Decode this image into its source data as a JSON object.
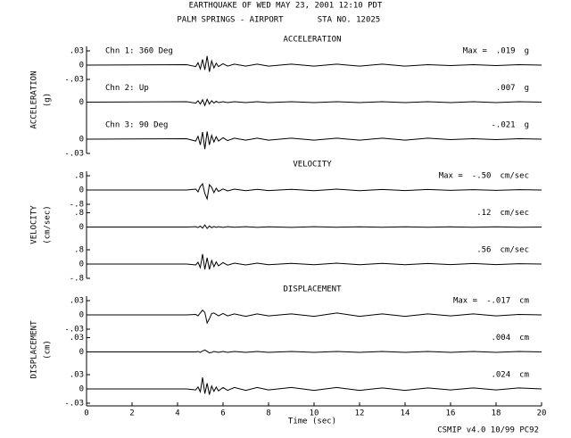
{
  "header": {
    "line1": "EARTHQUAKE OF WED MAY 23, 2001  12:10 PDT",
    "station_name": "PALM SPRINGS - AIRPORT",
    "station_no": "STA NO. 12025"
  },
  "footer": "CSMIP v4.0 10/99  PC92",
  "chart_data": [
    {
      "type": "line",
      "title": "ACCELERATION",
      "ylabel": "ACCELERATION",
      "yunit": "(g)",
      "max_prefix": "Max =",
      "unit": "g",
      "xlim": [
        0,
        20
      ],
      "ylim": [
        -0.03,
        0.03
      ],
      "x": [
        0,
        4.4,
        4.8,
        4.9,
        5.0,
        5.1,
        5.2,
        5.3,
        5.4,
        5.5,
        5.6,
        5.7,
        5.8,
        6.0,
        6.2,
        6.5,
        7,
        7.5,
        8,
        9,
        10,
        11,
        12,
        13,
        14,
        15,
        16,
        17,
        18,
        19,
        20
      ],
      "series": [
        {
          "name": "Chn 1: 360 Deg",
          "color": "#000000",
          "max": {
            "value": 0.019,
            "label": ".019"
          },
          "yticks": [
            {
              "value": 0.03,
              "label": ".03"
            },
            0,
            {
              "value": -0.03,
              "label": "-.03"
            }
          ],
          "values": [
            0,
            0.001,
            -0.003,
            0.005,
            -0.008,
            0.012,
            -0.01,
            0.019,
            -0.014,
            0.009,
            -0.006,
            0.004,
            -0.003,
            0.003,
            -0.002,
            0.002,
            -0.002,
            0.002,
            -0.002,
            0.002,
            -0.002,
            0.002,
            -0.002,
            0.002,
            -0.002,
            0.001,
            -0.001,
            0.001,
            -0.001,
            0.001,
            0
          ]
        },
        {
          "name": "Chn 2: Up",
          "color": "#000000",
          "max": {
            "value": 0.007,
            "label": ".007"
          },
          "yticks": [
            0
          ],
          "values": [
            0,
            0.001,
            -0.002,
            0.003,
            -0.004,
            0.005,
            -0.007,
            0.006,
            -0.004,
            0.003,
            -0.002,
            0.002,
            -0.001,
            0.001,
            -0.001,
            0.001,
            -0.001,
            0.001,
            -0.001,
            0.001,
            -0.001,
            0.001,
            -0.001,
            0.001,
            -0.001,
            0.001,
            -0.001,
            0.001,
            -0.001,
            0.001,
            0
          ]
        },
        {
          "name": "Chn 3: 90 Deg",
          "color": "#000000",
          "max": {
            "value": -0.021,
            "label": "-.021"
          },
          "yticks": [
            0,
            {
              "value": -0.03,
              "label": "-.03"
            }
          ],
          "values": [
            0,
            0.001,
            -0.004,
            0.006,
            -0.012,
            0.015,
            -0.021,
            0.016,
            -0.012,
            0.008,
            -0.006,
            0.005,
            -0.004,
            0.003,
            -0.003,
            0.002,
            -0.002,
            0.002,
            -0.002,
            0.002,
            -0.002,
            0.002,
            -0.002,
            0.002,
            -0.002,
            0.002,
            -0.001,
            0.001,
            -0.001,
            0.001,
            0
          ]
        }
      ]
    },
    {
      "type": "line",
      "title": "VELOCITY",
      "ylabel": "VELOCITY",
      "yunit": "(cm/sec)",
      "max_prefix": "Max =",
      "unit": "cm/sec",
      "xlim": [
        0,
        20
      ],
      "ylim": [
        -0.8,
        0.8
      ],
      "x": [
        0,
        4.4,
        4.8,
        4.9,
        5.0,
        5.1,
        5.2,
        5.3,
        5.4,
        5.5,
        5.6,
        5.7,
        5.8,
        6.0,
        6.2,
        6.5,
        7,
        7.5,
        8,
        9,
        10,
        11,
        12,
        13,
        14,
        15,
        16,
        17,
        18,
        19,
        20
      ],
      "series": [
        {
          "color": "#000000",
          "max": {
            "value": -0.5,
            "label": "-.50"
          },
          "yticks": [
            {
              "value": 0.8,
              "label": ".8"
            },
            0,
            {
              "value": -0.8,
              "label": "-.8"
            }
          ],
          "values": [
            0,
            0,
            0.05,
            -0.1,
            0.2,
            0.35,
            -0.2,
            -0.5,
            0.3,
            0.15,
            -0.15,
            0.1,
            -0.08,
            0.06,
            -0.05,
            0.05,
            -0.04,
            0.04,
            -0.03,
            0.04,
            -0.04,
            0.05,
            -0.04,
            0.03,
            -0.03,
            0.03,
            -0.02,
            0.02,
            -0.02,
            0.02,
            0
          ]
        },
        {
          "color": "#000000",
          "max": {
            "value": 0.12,
            "label": ".12"
          },
          "yticks": [
            {
              "value": 0.8,
              "label": ".8"
            },
            0
          ],
          "values": [
            0,
            0,
            0.02,
            -0.03,
            0.05,
            -0.06,
            0.12,
            -0.08,
            0.06,
            -0.04,
            0.03,
            -0.02,
            0.02,
            -0.02,
            0.02,
            -0.01,
            0.02,
            -0.02,
            0.01,
            -0.02,
            0.02,
            -0.01,
            0.01,
            -0.01,
            0.01,
            -0.01,
            0.01,
            -0.01,
            0.01,
            -0.01,
            0
          ]
        },
        {
          "color": "#000000",
          "max": {
            "value": 0.56,
            "label": ".56"
          },
          "yticks": [
            {
              "value": 0.8,
              "label": ".8"
            },
            0,
            {
              "value": -0.8,
              "label": "-.8"
            }
          ],
          "values": [
            0,
            0,
            -0.05,
            0.1,
            -0.2,
            0.56,
            -0.3,
            0.35,
            -0.3,
            0.2,
            -0.15,
            0.12,
            -0.1,
            0.08,
            -0.06,
            0.05,
            -0.05,
            0.05,
            -0.04,
            0.04,
            -0.04,
            0.05,
            -0.04,
            0.04,
            -0.04,
            0.03,
            -0.03,
            0.03,
            -0.03,
            0.02,
            0
          ]
        }
      ]
    },
    {
      "type": "line",
      "title": "DISPLACEMENT",
      "ylabel": "DISPLACEMENT",
      "yunit": "(cm)",
      "max_prefix": "Max =",
      "unit": "cm",
      "xlim": [
        0,
        20
      ],
      "ylim": [
        -0.03,
        0.03
      ],
      "xlabel": "Time (sec)",
      "xticks": [
        0,
        2,
        4,
        6,
        8,
        10,
        12,
        14,
        16,
        18,
        20
      ],
      "x": [
        0,
        4.4,
        4.8,
        4.9,
        5.0,
        5.1,
        5.2,
        5.3,
        5.4,
        5.5,
        5.6,
        5.7,
        5.8,
        6.0,
        6.2,
        6.5,
        7,
        7.5,
        8,
        9,
        10,
        11,
        12,
        13,
        14,
        15,
        16,
        17,
        18,
        19,
        20
      ],
      "series": [
        {
          "color": "#000000",
          "max": {
            "value": -0.017,
            "label": "-.017"
          },
          "yticks": [
            {
              "value": 0.03,
              "label": ".03"
            },
            0,
            {
              "value": -0.03,
              "label": "-.03"
            }
          ],
          "values": [
            0,
            0,
            0.001,
            -0.002,
            0.004,
            0.01,
            0.005,
            -0.017,
            -0.008,
            0.003,
            0.004,
            0.001,
            -0.002,
            0.003,
            -0.002,
            0.002,
            -0.003,
            0.002,
            -0.002,
            0.002,
            -0.003,
            0.004,
            -0.003,
            0.002,
            -0.003,
            0.002,
            -0.002,
            0.002,
            -0.002,
            0.001,
            0
          ]
        },
        {
          "color": "#000000",
          "max": {
            "value": 0.004,
            "label": ".004"
          },
          "yticks": [
            {
              "value": 0.03,
              "label": ".03"
            },
            0
          ],
          "values": [
            0,
            0,
            0,
            0.001,
            -0.001,
            0.002,
            0.004,
            0.001,
            -0.002,
            -0.001,
            0.001,
            0,
            -0.001,
            0.001,
            -0.001,
            0.001,
            -0.001,
            0.001,
            -0.001,
            0.001,
            -0.001,
            0.001,
            -0.001,
            0.001,
            -0.001,
            0.001,
            -0.001,
            0.001,
            -0.001,
            0.001,
            0
          ]
        },
        {
          "color": "#000000",
          "max": {
            "value": 0.024,
            "label": ".024"
          },
          "yticks": [
            {
              "value": 0.03,
              "label": ".03"
            },
            0,
            {
              "value": -0.03,
              "label": "-.03"
            }
          ],
          "values": [
            0,
            0,
            -0.002,
            0.004,
            -0.006,
            0.024,
            -0.01,
            0.012,
            -0.012,
            0.006,
            -0.005,
            0.004,
            -0.004,
            0.003,
            -0.003,
            0.003,
            -0.003,
            0.003,
            -0.002,
            0.003,
            -0.003,
            0.003,
            -0.003,
            0.002,
            -0.003,
            0.002,
            -0.002,
            0.002,
            -0.002,
            0.002,
            0
          ]
        }
      ]
    }
  ]
}
